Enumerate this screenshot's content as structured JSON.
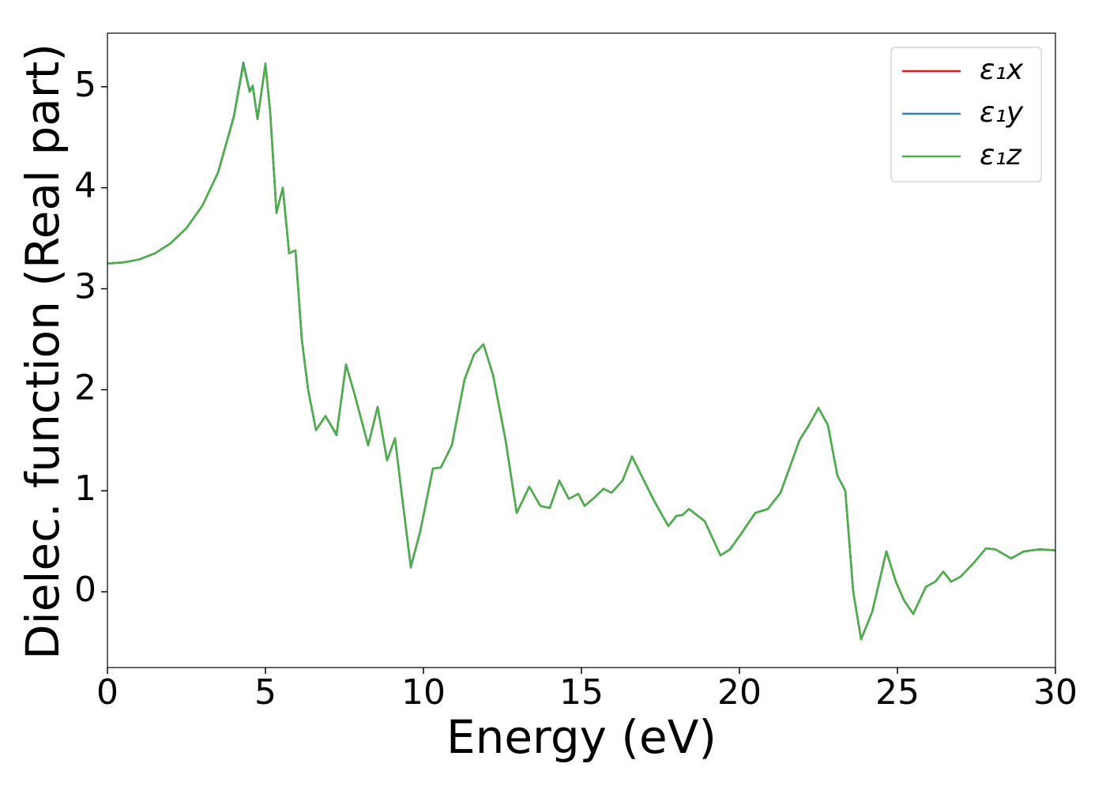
{
  "chart_data": {
    "type": "line",
    "xlabel": "Energy (eV)",
    "ylabel": "Dielec. function (Real part)",
    "x": [
      0,
      0.5,
      1,
      1.5,
      2,
      2.5,
      3,
      3.5,
      4,
      4.3,
      4.5,
      4.6,
      4.75,
      5.0,
      5.15,
      5.35,
      5.55,
      5.75,
      5.95,
      6.15,
      6.35,
      6.6,
      6.9,
      7.25,
      7.55,
      7.8,
      8.25,
      8.55,
      8.85,
      9.1,
      9.3,
      9.6,
      9.9,
      10.3,
      10.55,
      10.9,
      11.3,
      11.6,
      11.9,
      12.2,
      12.6,
      12.95,
      13.35,
      13.7,
      14.0,
      14.3,
      14.6,
      14.9,
      15.1,
      15.4,
      15.7,
      15.95,
      16.3,
      16.6,
      16.9,
      17.3,
      17.75,
      18.0,
      18.2,
      18.4,
      18.9,
      19.4,
      19.7,
      20.0,
      20.5,
      20.9,
      21.3,
      21.9,
      22.2,
      22.5,
      22.8,
      23.1,
      23.35,
      23.6,
      23.85,
      24.2,
      24.65,
      24.95,
      25.2,
      25.5,
      25.9,
      26.2,
      26.45,
      26.7,
      27.0,
      27.4,
      27.8,
      28.1,
      28.6,
      29.0,
      29.5,
      30.0
    ],
    "series": [
      {
        "name": "ε₁x",
        "color": "#e41a1c",
        "values": [
          3.25,
          3.26,
          3.29,
          3.35,
          3.45,
          3.6,
          3.82,
          4.15,
          4.7,
          5.22,
          4.95,
          5.0,
          4.68,
          5.22,
          4.75,
          3.75,
          4.0,
          3.35,
          3.38,
          2.5,
          2.0,
          1.6,
          1.74,
          1.56,
          2.25,
          1.98,
          1.45,
          1.83,
          1.3,
          1.52,
          1.0,
          0.25,
          0.6,
          1.22,
          1.23,
          1.45,
          2.1,
          2.35,
          2.45,
          2.15,
          1.5,
          0.78,
          1.04,
          0.85,
          0.83,
          1.1,
          0.92,
          0.97,
          0.85,
          0.93,
          1.02,
          0.98,
          1.1,
          1.34,
          1.15,
          0.9,
          0.65,
          0.75,
          0.76,
          0.82,
          0.7,
          0.36,
          0.42,
          0.55,
          0.78,
          0.82,
          0.98,
          1.5,
          1.65,
          1.82,
          1.65,
          1.15,
          1.0,
          0.0,
          -0.47,
          -0.2,
          0.4,
          0.1,
          -0.08,
          -0.22,
          0.05,
          0.1,
          0.2,
          0.1,
          0.15,
          0.28,
          0.43,
          0.42,
          0.33,
          0.4,
          0.42,
          0.41
        ]
      },
      {
        "name": "ε₁y",
        "color": "#377eb8",
        "values": [
          3.25,
          3.26,
          3.29,
          3.35,
          3.45,
          3.6,
          3.82,
          4.15,
          4.71,
          5.24,
          4.96,
          5.01,
          4.68,
          5.23,
          4.75,
          3.75,
          4.0,
          3.35,
          3.38,
          2.5,
          2.0,
          1.6,
          1.74,
          1.55,
          2.25,
          1.98,
          1.45,
          1.83,
          1.3,
          1.52,
          1.0,
          0.24,
          0.6,
          1.22,
          1.23,
          1.45,
          2.1,
          2.35,
          2.45,
          2.15,
          1.5,
          0.78,
          1.04,
          0.85,
          0.83,
          1.1,
          0.92,
          0.97,
          0.85,
          0.93,
          1.02,
          0.98,
          1.1,
          1.34,
          1.15,
          0.9,
          0.65,
          0.75,
          0.76,
          0.82,
          0.7,
          0.36,
          0.42,
          0.55,
          0.78,
          0.82,
          0.98,
          1.5,
          1.65,
          1.82,
          1.65,
          1.15,
          1.0,
          0.0,
          -0.47,
          -0.2,
          0.4,
          0.1,
          -0.08,
          -0.22,
          0.05,
          0.1,
          0.2,
          0.1,
          0.15,
          0.28,
          0.43,
          0.42,
          0.33,
          0.4,
          0.42,
          0.41
        ]
      },
      {
        "name": "ε₁z",
        "color": "#4daf4a",
        "values": [
          3.25,
          3.26,
          3.29,
          3.35,
          3.45,
          3.6,
          3.82,
          4.15,
          4.7,
          5.22,
          4.95,
          5.0,
          4.68,
          5.22,
          4.75,
          3.75,
          4.0,
          3.35,
          3.38,
          2.5,
          2.0,
          1.6,
          1.74,
          1.56,
          2.25,
          1.98,
          1.45,
          1.83,
          1.3,
          1.52,
          1.0,
          0.25,
          0.6,
          1.22,
          1.23,
          1.45,
          2.1,
          2.35,
          2.45,
          2.15,
          1.5,
          0.78,
          1.04,
          0.85,
          0.83,
          1.1,
          0.92,
          0.97,
          0.85,
          0.93,
          1.02,
          0.98,
          1.1,
          1.34,
          1.15,
          0.9,
          0.65,
          0.75,
          0.76,
          0.82,
          0.7,
          0.36,
          0.42,
          0.55,
          0.78,
          0.82,
          0.98,
          1.5,
          1.65,
          1.82,
          1.65,
          1.15,
          1.0,
          0.0,
          -0.47,
          -0.2,
          0.4,
          0.1,
          -0.08,
          -0.22,
          0.05,
          0.1,
          0.2,
          0.1,
          0.15,
          0.28,
          0.43,
          0.42,
          0.33,
          0.4,
          0.42,
          0.41
        ]
      }
    ],
    "xlim": [
      0,
      30
    ],
    "xticks": [
      0,
      5,
      10,
      15,
      20,
      25,
      30
    ],
    "ylim": [
      -0.75,
      5.53
    ],
    "yticks": [
      0,
      1,
      2,
      3,
      4,
      5
    ],
    "grid": false,
    "legend": "upper right"
  }
}
